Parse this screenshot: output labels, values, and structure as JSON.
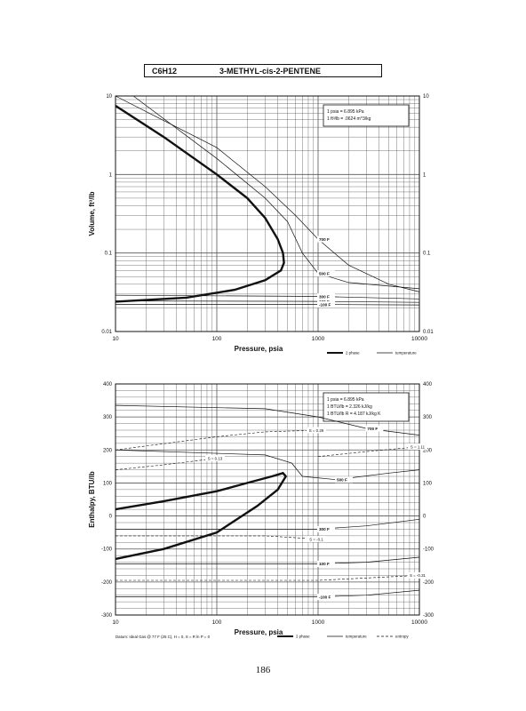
{
  "header": {
    "formula": "C6H12",
    "compound": "3-METHYL-cis-2-PENTENE"
  },
  "page_number": "186",
  "colors": {
    "ink": "#111111",
    "grid": "#555555"
  },
  "chart_data": [
    {
      "type": "line",
      "xlabel": "Pressure,  psia",
      "ylabel": "Volume, ft^3/lb",
      "xscale": "log",
      "yscale": "log",
      "xlim": [
        10,
        10000
      ],
      "ylim": [
        0.01,
        10
      ],
      "xticks": [
        "10",
        "100",
        "1000",
        "10000"
      ],
      "yticks_left": [
        "0.01",
        "0.1",
        "1",
        "10"
      ],
      "yticks_right": [
        "0.01",
        "0.1",
        "1",
        "10"
      ],
      "grid": true,
      "conversions": [
        "1 psia  =  6.895 kPa",
        "1 ft^3/lb  =  .0624 m^3/kg"
      ],
      "legend": {
        "placement": "bottom-right",
        "items": [
          "2 phase",
          "temperature"
        ]
      },
      "two_phase": [
        {
          "x": 10,
          "y": 7.5
        },
        {
          "x": 30,
          "y": 3.0
        },
        {
          "x": 100,
          "y": 1.0
        },
        {
          "x": 200,
          "y": 0.5
        },
        {
          "x": 300,
          "y": 0.28
        },
        {
          "x": 400,
          "y": 0.15
        },
        {
          "x": 450,
          "y": 0.1
        },
        {
          "x": 460,
          "y": 0.075
        },
        {
          "x": 430,
          "y": 0.06
        },
        {
          "x": 300,
          "y": 0.045
        },
        {
          "x": 150,
          "y": 0.034
        },
        {
          "x": 50,
          "y": 0.027
        },
        {
          "x": 10,
          "y": 0.024
        }
      ],
      "isotherms": [
        {
          "name": "700 F",
          "points": [
            {
              "x": 10,
              "y": 10
            },
            {
              "x": 100,
              "y": 2.2
            },
            {
              "x": 300,
              "y": 0.7
            },
            {
              "x": 600,
              "y": 0.3
            },
            {
              "x": 1000,
              "y": 0.15
            },
            {
              "x": 2000,
              "y": 0.07
            },
            {
              "x": 5000,
              "y": 0.04
            },
            {
              "x": 10000,
              "y": 0.032
            }
          ]
        },
        {
          "name": "500 F",
          "points": [
            {
              "x": 15,
              "y": 10
            },
            {
              "x": 100,
              "y": 1.6
            },
            {
              "x": 300,
              "y": 0.5
            },
            {
              "x": 500,
              "y": 0.25
            },
            {
              "x": 700,
              "y": 0.1
            },
            {
              "x": 1000,
              "y": 0.055
            },
            {
              "x": 2000,
              "y": 0.042
            },
            {
              "x": 10000,
              "y": 0.035
            }
          ]
        },
        {
          "name": "300 F",
          "points": [
            {
              "x": 10,
              "y": 0.029
            },
            {
              "x": 1000,
              "y": 0.028
            },
            {
              "x": 10000,
              "y": 0.026
            }
          ]
        },
        {
          "name": "100 F",
          "points": [
            {
              "x": 10,
              "y": 0.0245
            },
            {
              "x": 1000,
              "y": 0.0242
            },
            {
              "x": 10000,
              "y": 0.0235
            }
          ]
        },
        {
          "name": "-100 F",
          "points": [
            {
              "x": 10,
              "y": 0.0222
            },
            {
              "x": 1000,
              "y": 0.0221
            },
            {
              "x": 10000,
              "y": 0.0218
            }
          ]
        }
      ]
    },
    {
      "type": "line",
      "xlabel": "Pressure,  psia",
      "ylabel": "Enthalpy, BTU/lb",
      "xscale": "log",
      "yscale": "linear",
      "xlim": [
        10,
        10000
      ],
      "ylim": [
        -300,
        400
      ],
      "xticks": [
        "10",
        "100",
        "1000",
        "10000"
      ],
      "yticks_left": [
        "-300",
        "-200",
        "-100",
        "0",
        "100",
        "200",
        "300",
        "400"
      ],
      "yticks_right": [
        "-300",
        "-200",
        "-100",
        "0",
        "100",
        "200",
        "300",
        "400"
      ],
      "grid": true,
      "conversions": [
        "1 psia  =  6.895 kPa",
        "1 BTU/lb  =  2.326 kJ/kg",
        "1 BTU/lb R  =  4.187 kJ/kg K"
      ],
      "legend": {
        "placement": "bottom-right",
        "items": [
          "2 phase",
          "temperature",
          "entropy"
        ]
      },
      "footnote": "Datum: Ideal Gas @ 77 F (25 C),  H = 0,  S = R ln P = 0",
      "two_phase": [
        {
          "x": 10,
          "y": 20
        },
        {
          "x": 30,
          "y": 45
        },
        {
          "x": 100,
          "y": 75
        },
        {
          "x": 200,
          "y": 100
        },
        {
          "x": 350,
          "y": 120
        },
        {
          "x": 450,
          "y": 130
        },
        {
          "x": 480,
          "y": 120
        },
        {
          "x": 400,
          "y": 80
        },
        {
          "x": 250,
          "y": 30
        },
        {
          "x": 100,
          "y": -50
        },
        {
          "x": 30,
          "y": -100
        },
        {
          "x": 10,
          "y": -130
        }
      ],
      "isotherms": [
        {
          "name": "700 F",
          "points": [
            {
              "x": 10,
              "y": 335
            },
            {
              "x": 300,
              "y": 325
            },
            {
              "x": 1000,
              "y": 300
            },
            {
              "x": 3000,
              "y": 265
            },
            {
              "x": 10000,
              "y": 245
            }
          ]
        },
        {
          "name": "500 F",
          "points": [
            {
              "x": 10,
              "y": 200
            },
            {
              "x": 300,
              "y": 185
            },
            {
              "x": 550,
              "y": 160
            },
            {
              "x": 700,
              "y": 120
            },
            {
              "x": 1500,
              "y": 110
            },
            {
              "x": 5000,
              "y": 130
            },
            {
              "x": 10000,
              "y": 140
            }
          ]
        },
        {
          "name": "300 F",
          "points": [
            {
              "x": 10,
              "y": -40
            },
            {
              "x": 1000,
              "y": -40
            },
            {
              "x": 3000,
              "y": -30
            },
            {
              "x": 10000,
              "y": -10
            }
          ]
        },
        {
          "name": "100 F",
          "points": [
            {
              "x": 10,
              "y": -145
            },
            {
              "x": 1000,
              "y": -145
            },
            {
              "x": 3000,
              "y": -140
            },
            {
              "x": 10000,
              "y": -125
            }
          ]
        },
        {
          "name": "-100 F",
          "points": [
            {
              "x": 10,
              "y": -245
            },
            {
              "x": 1000,
              "y": -245
            },
            {
              "x": 3000,
              "y": -240
            },
            {
              "x": 10000,
              "y": -225
            }
          ]
        }
      ],
      "entropy_lines": [
        {
          "name": "S = 0.29",
          "points": [
            {
              "x": 10,
              "y": 200
            },
            {
              "x": 100,
              "y": 240
            },
            {
              "x": 300,
              "y": 255
            },
            {
              "x": 1000,
              "y": 260
            }
          ]
        },
        {
          "name": "S = 0.13",
          "points": [
            {
              "x": 10,
              "y": 140
            },
            {
              "x": 30,
              "y": 155
            },
            {
              "x": 100,
              "y": 175
            }
          ]
        },
        {
          "name": "S = 1.11",
          "points": [
            {
              "x": 1000,
              "y": 180
            },
            {
              "x": 3000,
              "y": 195
            },
            {
              "x": 10000,
              "y": 210
            }
          ]
        },
        {
          "name": "S = -0.1",
          "points": [
            {
              "x": 10,
              "y": -60
            },
            {
              "x": 300,
              "y": -60
            },
            {
              "x": 1000,
              "y": -70
            }
          ]
        },
        {
          "name": "S = -0.31",
          "points": [
            {
              "x": 10,
              "y": -195
            },
            {
              "x": 1000,
              "y": -195
            },
            {
              "x": 10000,
              "y": -180
            }
          ]
        }
      ]
    }
  ]
}
